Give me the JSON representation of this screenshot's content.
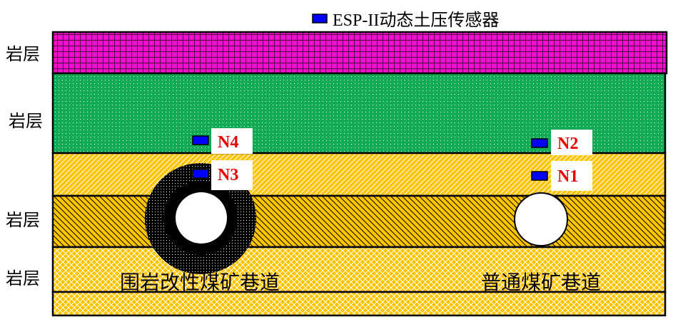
{
  "legend": {
    "label": "ESP-II动态土压传感器",
    "color": "#0000ff"
  },
  "layers": [
    {
      "label": "岩层",
      "color": "#ee11cc",
      "pattern": "grid"
    },
    {
      "label": "岩层",
      "color": "#11aa55",
      "pattern": "dots"
    },
    {
      "label": "",
      "color": "#ffc400",
      "pattern": "diagonal-white"
    },
    {
      "label": "岩层",
      "color": "#ffc400",
      "pattern": "diagonal-black"
    },
    {
      "label": "岩层",
      "color": "#ffc400",
      "pattern": "crosshatch-white"
    }
  ],
  "sensors": [
    {
      "label": "N4",
      "color": "#ee0000"
    },
    {
      "label": "N3",
      "color": "#ee0000"
    },
    {
      "label": "N2",
      "color": "#ee0000"
    },
    {
      "label": "N1",
      "color": "#ee0000"
    }
  ],
  "tunnels": {
    "modified": "围岩改性煤矿巷道",
    "normal": "普通煤矿巷道"
  }
}
